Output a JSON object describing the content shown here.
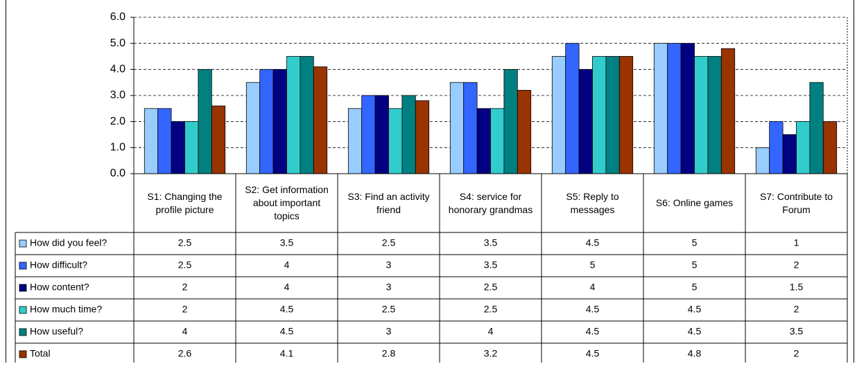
{
  "chart_data": {
    "type": "bar",
    "categories": [
      "S1: Changing the profile picture",
      "S2: Get information about important topics",
      "S3: Find an activity friend",
      "S4: service for honorary grandmas",
      "S5: Reply to messages",
      "S6: Online games",
      "S7: Contribute to Forum"
    ],
    "series": [
      {
        "name": "How did you feel?",
        "color": "#99ccff",
        "values": [
          2.5,
          3.5,
          2.5,
          3.5,
          4.5,
          5,
          1
        ]
      },
      {
        "name": "How difficult?",
        "color": "#3366ff",
        "values": [
          2.5,
          4,
          3,
          3.5,
          5,
          5,
          2
        ]
      },
      {
        "name": "How content?",
        "color": "#000080",
        "values": [
          2,
          4,
          3,
          2.5,
          4,
          5,
          1.5
        ]
      },
      {
        "name": "How much time?",
        "color": "#33cccc",
        "values": [
          2,
          4.5,
          2.5,
          2.5,
          4.5,
          4.5,
          2
        ]
      },
      {
        "name": "How useful?",
        "color": "#008080",
        "values": [
          4,
          4.5,
          3,
          4,
          4.5,
          4.5,
          3.5
        ]
      },
      {
        "name": "Total",
        "color": "#993300",
        "values": [
          2.6,
          4.1,
          2.8,
          3.2,
          4.5,
          4.8,
          2
        ]
      }
    ],
    "ylim": [
      0,
      6
    ],
    "yticks": [
      {
        "value": 0,
        "label": "0.0"
      },
      {
        "value": 1,
        "label": "1.0"
      },
      {
        "value": 2,
        "label": "2.0"
      },
      {
        "value": 3,
        "label": "3.0"
      },
      {
        "value": 4,
        "label": "4.0"
      },
      {
        "value": 5,
        "label": "5.0"
      },
      {
        "value": 6,
        "label": "6.0"
      }
    ],
    "grid": true
  }
}
